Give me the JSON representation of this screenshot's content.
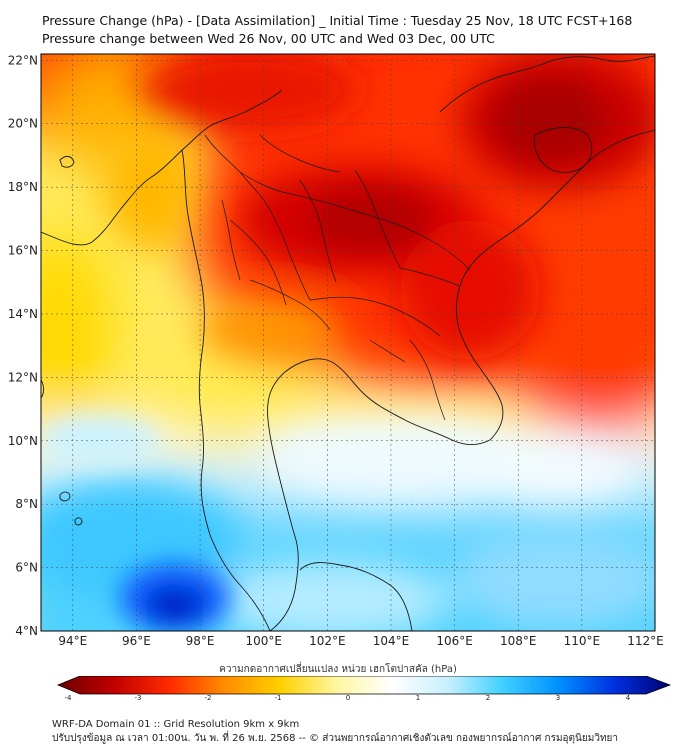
{
  "title": {
    "line1": "Pressure Change (hPa) - [Data Assimilation] _ Initial Time : Tuesday 25 Nov, 18 UTC FCST+168",
    "line2": "Pressure change between Wed 26 Nov, 00 UTC and Wed 03 Dec, 00 UTC"
  },
  "map": {
    "lat_labels": [
      "22°N",
      "20°N",
      "18°N",
      "16°N",
      "14°N",
      "12°N",
      "10°N",
      "8°N",
      "6°N",
      "4°N"
    ],
    "lon_labels": [
      "94°E",
      "96°E",
      "98°E",
      "100°E",
      "102°E",
      "104°E",
      "106°E",
      "108°E",
      "110°E",
      "112°E"
    ],
    "lat_range": [
      4,
      22.2
    ],
    "lon_range": [
      93,
      112.3
    ]
  },
  "colorbar": {
    "title": "ความกดอากาศเปลี่ยนแปลง หน่วย เฮกโตปาสคัล (hPa)",
    "tick_labels": [
      "-4",
      "-3",
      "-2",
      "-1",
      "0",
      "1",
      "2",
      "3",
      "4"
    ],
    "range": [
      -4,
      4
    ],
    "colors": [
      "#6b0000",
      "#c10000",
      "#ff2a00",
      "#ff8c00",
      "#ffd000",
      "#fff6a0",
      "#ffffff",
      "#c8f0ff",
      "#40d0ff",
      "#0090ff",
      "#0030e0",
      "#000070"
    ]
  },
  "footer": {
    "line1": "WRF-DA Domain 01 :: Grid Resolution 9km x 9km",
    "line2": "ปรับปรุงข้อมูล ณ เวลา 01:00น. วัน พ. ที่ 26 พ.ย. 2568 -- © ส่วนพยากรณ์อากาศเชิงตัวเลข กองพยากรณ์อากาศ กรมอุตุนิยมวิทยา"
  }
}
